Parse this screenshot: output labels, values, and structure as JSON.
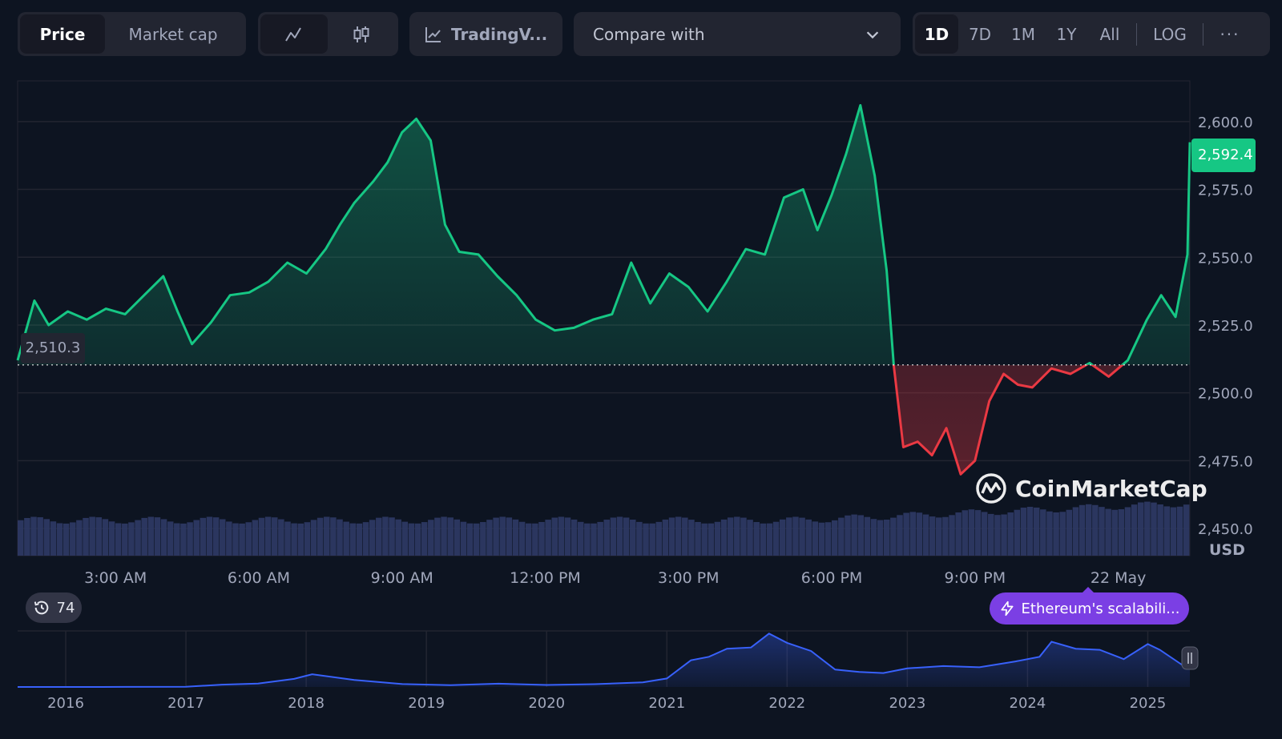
{
  "toolbar": {
    "type_tabs": [
      "Price",
      "Market cap"
    ],
    "style_icons": [
      "line-chart-icon",
      "candlestick-icon"
    ],
    "tradingview_label": "TradingV...",
    "compare_placeholder": "Compare with",
    "ranges": [
      "1D",
      "7D",
      "1M",
      "1Y",
      "All"
    ],
    "log_label": "LOG",
    "more_label": "···"
  },
  "colors": {
    "up": "#16c784",
    "down": "#ea3943",
    "volume": "#2f3a66",
    "navigator": "#3861fb",
    "grid": "#222531",
    "badge": "#7b3fe4"
  },
  "chart_data": [
    {
      "type": "line",
      "ylim": [
        2440,
        2615
      ],
      "y_ticks": [
        "2,450.0",
        "2,475.0",
        "2,500.0",
        "2,525.0",
        "2,550.0",
        "2,575.0",
        "2,600.0"
      ],
      "y_tick_values": [
        2450,
        2475,
        2500,
        2525,
        2550,
        2575,
        2600
      ],
      "x_tick_labels": [
        "3:00 AM",
        "6:00 AM",
        "9:00 AM",
        "12:00 PM",
        "3:00 PM",
        "6:00 PM",
        "9:00 PM",
        "22 May"
      ],
      "x_tick_hours": [
        3,
        6,
        9,
        12,
        15,
        18,
        21,
        24
      ],
      "xlim_hours": [
        0.95,
        25.5
      ],
      "y_unit": "USD",
      "reference_value": 2510.3,
      "reference_label": "2,510.3",
      "current_value": 2592.4,
      "current_label": "2,592.4",
      "series": [
        {
          "x": [
            0.95,
            1.3,
            1.6,
            2.0,
            2.4,
            2.8,
            3.2,
            3.6,
            4.0,
            4.3,
            4.6,
            5.0,
            5.4,
            5.8,
            6.2,
            6.6,
            7.0,
            7.4,
            7.7,
            8.0,
            8.4,
            8.7,
            9.0,
            9.3,
            9.6,
            9.9,
            10.2,
            10.6,
            11.0,
            11.4,
            11.8,
            12.2,
            12.6,
            13.0,
            13.4,
            13.8,
            14.2,
            14.6,
            15.0,
            15.4,
            15.8,
            16.2,
            16.6,
            17.0,
            17.4,
            17.7,
            18.0,
            18.3,
            18.6,
            18.9,
            19.15,
            19.3,
            19.5,
            19.8,
            20.1,
            20.4,
            20.7,
            21.0,
            21.3,
            21.6,
            21.9,
            22.2,
            22.6,
            23.0,
            23.4,
            23.8,
            24.2,
            24.6,
            24.9,
            25.2,
            25.45,
            25.5
          ],
          "values": [
            2512,
            2534,
            2525,
            2530,
            2527,
            2531,
            2529,
            2536,
            2543,
            2530,
            2518,
            2526,
            2536,
            2537,
            2541,
            2548,
            2544,
            2553,
            2562,
            2570,
            2578,
            2585,
            2596,
            2601,
            2593,
            2562,
            2552,
            2551,
            2543,
            2536,
            2527,
            2523,
            2524,
            2527,
            2529,
            2548,
            2533,
            2544,
            2539,
            2530,
            2541,
            2553,
            2551,
            2572,
            2575,
            2560,
            2573,
            2588,
            2606,
            2580,
            2545,
            2510,
            2480,
            2482,
            2477,
            2487,
            2470,
            2475,
            2497,
            2507,
            2503,
            2502,
            2509,
            2507,
            2511,
            2506,
            2512,
            2527,
            2536,
            2528,
            2551,
            2592.4
          ]
        }
      ]
    },
    {
      "type": "area",
      "x_tick_labels": [
        "2016",
        "2017",
        "2018",
        "2019",
        "2020",
        "2021",
        "2022",
        "2023",
        "2024",
        "2025"
      ],
      "x": [
        2015.6,
        2016.0,
        2016.5,
        2017.0,
        2017.3,
        2017.6,
        2017.9,
        2018.05,
        2018.4,
        2018.8,
        2019.2,
        2019.6,
        2020.0,
        2020.4,
        2020.8,
        2021.0,
        2021.2,
        2021.35,
        2021.5,
        2021.7,
        2021.85,
        2022.0,
        2022.2,
        2022.4,
        2022.6,
        2022.8,
        2023.0,
        2023.3,
        2023.6,
        2023.9,
        2024.1,
        2024.2,
        2024.4,
        2024.6,
        2024.8,
        2025.0,
        2025.1,
        2025.3,
        2025.35
      ],
      "values": [
        1,
        2,
        10,
        15,
        200,
        300,
        700,
        1100,
        600,
        250,
        150,
        280,
        170,
        240,
        400,
        730,
        2300,
        2600,
        3300,
        3400,
        4600,
        3800,
        3100,
        1500,
        1300,
        1200,
        1600,
        1800,
        1700,
        2200,
        2600,
        3900,
        3300,
        3200,
        2400,
        3700,
        3200,
        1800,
        2592
      ]
    }
  ],
  "watermark": "CoinMarketCap",
  "history_count": "74",
  "news_label": "Ethereum's scalabili..."
}
